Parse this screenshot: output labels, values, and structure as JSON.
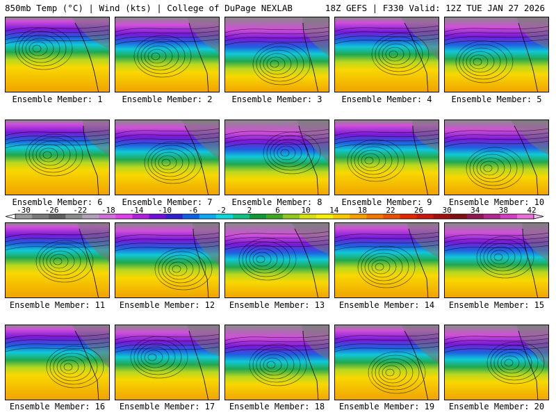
{
  "header": {
    "left_title": "850mb Temp (°C) | Wind (kts) | College of DuPage NEXLAB",
    "right_title": "18Z GEFS | F330 Valid: 12Z TUE JAN 27 2026"
  },
  "members": [
    {
      "label": "Ensemble Member: 1"
    },
    {
      "label": "Ensemble Member: 2"
    },
    {
      "label": "Ensemble Member: 3"
    },
    {
      "label": "Ensemble Member: 4"
    },
    {
      "label": "Ensemble Member: 5"
    },
    {
      "label": "Ensemble Member: 6"
    },
    {
      "label": "Ensemble Member: 7"
    },
    {
      "label": "Ensemble Member: 8"
    },
    {
      "label": "Ensemble Member: 9"
    },
    {
      "label": "Ensemble Member: 10"
    },
    {
      "label": "Ensemble Member: 11"
    },
    {
      "label": "Ensemble Member: 12"
    },
    {
      "label": "Ensemble Member: 13"
    },
    {
      "label": "Ensemble Member: 14"
    },
    {
      "label": "Ensemble Member: 15"
    },
    {
      "label": "Ensemble Member: 16"
    },
    {
      "label": "Ensemble Member: 17"
    },
    {
      "label": "Ensemble Member: 18"
    },
    {
      "label": "Ensemble Member: 19"
    },
    {
      "label": "Ensemble Member: 20"
    }
  ],
  "colorbar": {
    "tick_labels": [
      "-30",
      "-26",
      "-22",
      "-18",
      "-14",
      "-10",
      "-6",
      "-2",
      "2",
      "6",
      "10",
      "14",
      "18",
      "22",
      "26",
      "30",
      "34",
      "38",
      "42"
    ],
    "colors": [
      "#9a9a9a",
      "#7a7a7a",
      "#606060",
      "#8a8a8a",
      "#b0a0b8",
      "#d070d8",
      "#e040e8",
      "#b020e0",
      "#7010d8",
      "#3020d0",
      "#1060e8",
      "#10a8f0",
      "#10d8d8",
      "#10c080",
      "#109838",
      "#40a820",
      "#90c820",
      "#d8e010",
      "#f8f000",
      "#f8c800",
      "#f8a000",
      "#f07800",
      "#e85000",
      "#e02800",
      "#c81810",
      "#a01010",
      "#801010",
      "#901850",
      "#b02890",
      "#d040c0",
      "#e870d8"
    ],
    "symbol_color": "#f0c0f0"
  }
}
